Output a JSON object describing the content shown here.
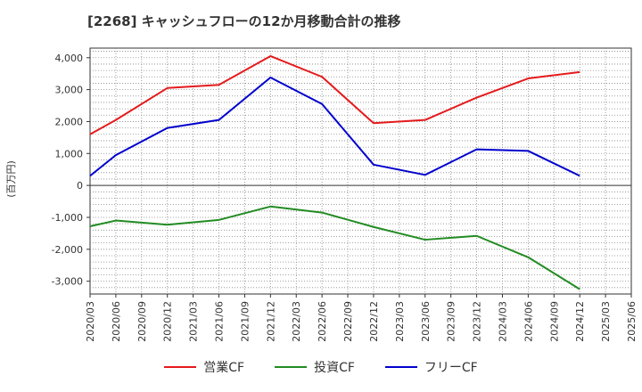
{
  "chart_data": {
    "type": "line",
    "title": "[2268]  キャッシュフローの12か月移動合計の推移",
    "ylabel": "(百万円)",
    "xlabel": "",
    "ylim": [
      -3400,
      4300
    ],
    "yticks": [
      4000,
      3000,
      2000,
      1000,
      0,
      -1000,
      -2000,
      -3000
    ],
    "ytick_labels": [
      "4,000",
      "3,000",
      "2,000",
      "1,000",
      "0",
      "-1,000",
      "-2,000",
      "-3,000"
    ],
    "categories": [
      "2020/03",
      "2020/06",
      "2020/09",
      "2020/12",
      "2021/03",
      "2021/06",
      "2021/09",
      "2021/12",
      "2022/03",
      "2022/06",
      "2022/09",
      "2022/12",
      "2023/03",
      "2023/06",
      "2023/09",
      "2023/12",
      "2024/03",
      "2024/06",
      "2024/09",
      "2024/12",
      "2025/03",
      "2025/06"
    ],
    "grid": true,
    "legend_position": "bottom",
    "series": [
      {
        "name": "営業CF",
        "color": "#e41a1c",
        "x": [
          "2020/03",
          "2020/06",
          "2020/12",
          "2021/06",
          "2021/12",
          "2022/06",
          "2022/12",
          "2023/06",
          "2023/12",
          "2024/06",
          "2024/12"
        ],
        "values": [
          1600,
          2050,
          3050,
          3150,
          4050,
          3400,
          1950,
          2050,
          2750,
          3350,
          3550
        ]
      },
      {
        "name": "投資CF",
        "color": "#228b22",
        "x": [
          "2020/03",
          "2020/06",
          "2020/12",
          "2021/06",
          "2021/12",
          "2022/06",
          "2022/12",
          "2023/06",
          "2023/12",
          "2024/06",
          "2024/12"
        ],
        "values": [
          -1280,
          -1100,
          -1230,
          -1080,
          -660,
          -850,
          -1300,
          -1700,
          -1580,
          -2250,
          -3250
        ]
      },
      {
        "name": "フリーCF",
        "color": "#0000cd",
        "x": [
          "2020/03",
          "2020/06",
          "2020/12",
          "2021/06",
          "2021/12",
          "2022/06",
          "2022/12",
          "2023/06",
          "2023/12",
          "2024/06",
          "2024/12"
        ],
        "values": [
          300,
          950,
          1800,
          2050,
          3380,
          2550,
          650,
          330,
          1130,
          1080,
          300
        ]
      }
    ]
  }
}
